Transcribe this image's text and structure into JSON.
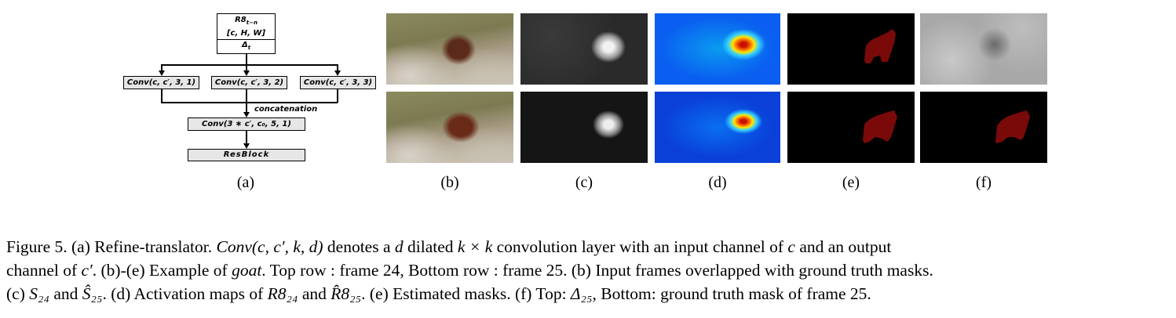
{
  "diagram": {
    "input_box": {
      "line1": "R8",
      "line1_sub": "t−n",
      "line2": "[c, H, W]",
      "line3": "Δ",
      "line3_sub": "t"
    },
    "branches": [
      "Conv(c, c′, 3, 1)",
      "Conv(c, c′, 3, 2)",
      "Conv(c, c′, 3, 3)"
    ],
    "concat_label": "concatenation",
    "merge_box": "Conv(3 ∗ c′, c₀, 5, 1)",
    "resblock": "ResBlock"
  },
  "subfigure_labels": [
    "(a)",
    "(b)",
    "(c)",
    "(d)",
    "(e)",
    "(f)"
  ],
  "caption": {
    "label": "Figure 5.",
    "line1_a": "(a) Refine-translator.",
    "line1_math1": "Conv(c, c′, k, d)",
    "line1_b": "denotes a",
    "line1_math2": "d",
    "line1_c": "dilated",
    "line1_math3": "k × k",
    "line1_d": "convolution layer with an input channel of",
    "line1_math4": "c",
    "line1_e": "and an output",
    "line2_a": "channel of",
    "line2_math": "c′",
    "line2_b": ". (b)-(e) Example of",
    "line2_goat": "goat",
    "line2_c": ". Top row : frame 24, Bottom row : frame 25. (b) Input frames overlapped with ground truth masks.",
    "line3_a": "(c)",
    "line3_m1": "S₂₄",
    "line3_b": "and",
    "line3_m2": "Ŝ₂₅",
    "line3_c": ". (d) Activation maps of",
    "line3_m3": "R8₂₄",
    "line3_d": "and",
    "line3_m4": "R̂8₂₅",
    "line3_e": ". (e) Estimated masks. (f) Top:",
    "line3_m5": "Δ₂₅",
    "line3_f": ", Bottom: ground truth mask of frame 25."
  }
}
